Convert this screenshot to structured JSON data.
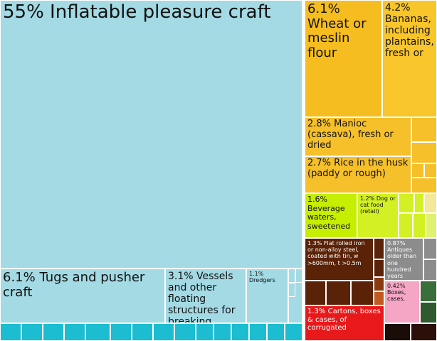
{
  "chart_data": {
    "type": "treemap",
    "items": [
      {
        "label": "55% Inflatable pleasure craft",
        "value": 55,
        "color": "#a3dae4"
      },
      {
        "label": "6.1% Tugs and pusher craft",
        "value": 6.1,
        "color": "#a3dae4"
      },
      {
        "label": "3.1% Vessels and other floating structures for breaking",
        "value": 3.1,
        "color": "#a3dae4"
      },
      {
        "label": "1.1% Dredgers",
        "value": 1.1,
        "color": "#a3dae4"
      },
      {
        "label": "6.1% Wheat or meslin flour",
        "value": 6.1,
        "color": "#f5bd1f"
      },
      {
        "label": "4.2% Bananas, including plantains, fresh or",
        "value": 4.2,
        "color": "#f8c52b"
      },
      {
        "label": "2.8% Manioc (cassava), fresh or dried",
        "value": 2.8,
        "color": "#f6c02a"
      },
      {
        "label": "2.7% Rice in the husk (paddy or rough)",
        "value": 2.7,
        "color": "#f6c02a"
      },
      {
        "label": "1.6% Beverage waters, sweetened",
        "value": 1.6,
        "color": "#c6ee00"
      },
      {
        "label": "1.2% Dog or cat food (retail)",
        "value": 1.2,
        "color": "#d2f024"
      },
      {
        "label": "1.3% Flat rolled iron or non-alloy steel, coated with tin, w >600mm, t >0.5m",
        "value": 1.3,
        "color": "#5a2206"
      },
      {
        "label": "0.87% Antiques older than one hundred years",
        "value": 0.87,
        "color": "#8c8c8c"
      },
      {
        "label": "0.42% Boxes, cases,",
        "value": 0.42,
        "color": "#f4a6c4"
      },
      {
        "label": "1.3% Cartons, boxes & cases, of corrugated",
        "value": 1.3,
        "color": "#e8191b"
      }
    ]
  }
}
